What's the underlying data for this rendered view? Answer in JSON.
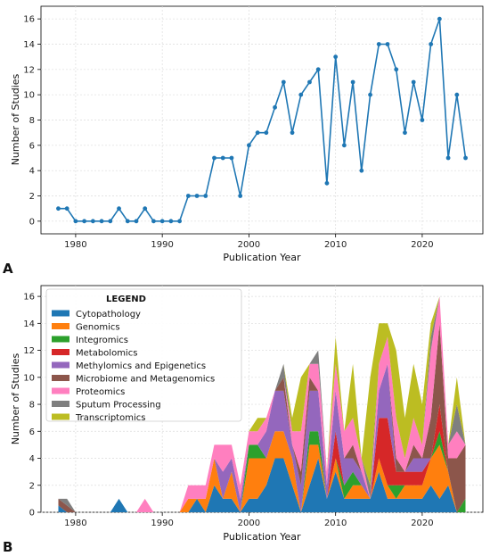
{
  "chart_data": [
    {
      "type": "line",
      "panel_label": "A",
      "xlabel": "Publication Year",
      "ylabel": "Number of Studies",
      "xlim": [
        1976,
        2027
      ],
      "ylim": [
        -1,
        17
      ],
      "xticks": [
        "1980",
        "1990",
        "2000",
        "2010",
        "2020"
      ],
      "yticks": [
        "0",
        "2",
        "4",
        "6",
        "8",
        "10",
        "12",
        "14",
        "16"
      ],
      "grid": true,
      "color": "#1f77b4",
      "x": [
        1978,
        1979,
        1980,
        1981,
        1982,
        1983,
        1984,
        1985,
        1986,
        1987,
        1988,
        1989,
        1990,
        1991,
        1992,
        1993,
        1994,
        1995,
        1996,
        1997,
        1998,
        1999,
        2000,
        2001,
        2002,
        2003,
        2004,
        2005,
        2006,
        2007,
        2008,
        2009,
        2010,
        2011,
        2012,
        2013,
        2014,
        2015,
        2016,
        2017,
        2018,
        2019,
        2020,
        2021,
        2022,
        2023,
        2024,
        2025
      ],
      "y": [
        1,
        1,
        0,
        0,
        0,
        0,
        0,
        1,
        0,
        0,
        1,
        0,
        0,
        0,
        0,
        2,
        2,
        2,
        5,
        5,
        5,
        2,
        6,
        7,
        7,
        9,
        11,
        7,
        10,
        11,
        12,
        3,
        13,
        6,
        11,
        4,
        10,
        14,
        14,
        12,
        7,
        11,
        8,
        14,
        16,
        5,
        10,
        5
      ]
    },
    {
      "type": "area",
      "stacked": true,
      "panel_label": "B",
      "xlabel": "Publication Year",
      "ylabel": "Number of Studies",
      "xlim": [
        1976,
        2027
      ],
      "ylim": [
        0,
        16.8
      ],
      "xticks": [
        "1980",
        "1990",
        "2000",
        "2010",
        "2020"
      ],
      "yticks": [
        "0",
        "2",
        "4",
        "6",
        "8",
        "10",
        "12",
        "14",
        "16"
      ],
      "grid": true,
      "legend_title": "LEGEND",
      "legend_position": "top-left",
      "x": [
        1978,
        1979,
        1980,
        1981,
        1982,
        1983,
        1984,
        1985,
        1986,
        1987,
        1988,
        1989,
        1990,
        1991,
        1992,
        1993,
        1994,
        1995,
        1996,
        1997,
        1998,
        1999,
        2000,
        2001,
        2002,
        2003,
        2004,
        2005,
        2006,
        2007,
        2008,
        2009,
        2010,
        2011,
        2012,
        2013,
        2014,
        2015,
        2016,
        2017,
        2018,
        2019,
        2020,
        2021,
        2022,
        2023,
        2024,
        2025
      ],
      "series": [
        {
          "name": "Cytopathology",
          "color": "#1f77b4",
          "values": [
            0.5,
            0,
            0,
            0,
            0,
            0,
            0,
            1,
            0,
            0,
            0,
            0,
            0,
            0,
            0,
            0,
            1,
            0,
            2,
            1,
            1,
            0,
            1,
            1,
            2,
            4,
            4,
            2,
            0,
            2,
            4,
            1,
            3,
            1,
            1,
            1,
            1,
            3,
            1,
            1,
            1,
            1,
            1,
            2,
            1,
            2,
            0,
            0
          ]
        },
        {
          "name": "Genomics",
          "color": "#ff7f0e",
          "values": [
            0,
            0,
            0,
            0,
            0,
            0,
            0,
            0,
            0,
            0,
            0,
            0,
            0,
            0,
            0,
            1,
            0,
            1,
            2,
            0,
            2,
            0,
            3,
            3,
            2,
            2,
            2,
            2,
            0,
            3,
            1,
            0,
            1,
            0,
            1,
            1,
            0,
            1,
            1,
            0,
            1,
            1,
            1,
            2,
            4,
            1,
            0,
            0
          ]
        },
        {
          "name": "Integromics",
          "color": "#2ca02c",
          "values": [
            0,
            0,
            0,
            0,
            0,
            0,
            0,
            0,
            0,
            0,
            0,
            0,
            0,
            0,
            0,
            0,
            0,
            0,
            0,
            0,
            0,
            0,
            1,
            1,
            0,
            0,
            0,
            0,
            0,
            1,
            1,
            0,
            0,
            1,
            1,
            0,
            0,
            0,
            0,
            1,
            0,
            0,
            0,
            0,
            1,
            0,
            0,
            1
          ]
        },
        {
          "name": "Metabolomics",
          "color": "#d62728",
          "values": [
            0,
            0,
            0,
            0,
            0,
            0,
            0,
            0,
            0,
            0,
            0,
            0,
            0,
            0,
            0,
            0,
            0,
            0,
            0,
            0,
            0,
            0,
            0,
            0,
            0,
            0,
            0,
            0,
            0,
            0,
            0,
            0,
            2,
            0,
            0,
            0,
            0,
            3,
            5,
            1,
            1,
            1,
            1,
            0,
            2,
            0,
            0,
            0
          ]
        },
        {
          "name": "Methylomics and Epigenetics",
          "color": "#9467bd",
          "values": [
            0,
            0,
            0,
            0,
            0,
            0,
            0,
            0,
            0,
            0,
            0,
            0,
            0,
            0,
            0,
            0,
            0,
            0,
            0,
            2,
            1,
            1,
            0,
            0,
            2,
            3,
            3,
            1,
            2,
            3,
            3,
            1,
            3,
            2,
            1,
            1,
            0,
            2,
            4,
            0,
            0,
            1,
            1,
            0,
            0,
            0,
            0,
            0
          ]
        },
        {
          "name": "Microbiome and Metagenomics",
          "color": "#8c564b",
          "values": [
            0.5,
            0.5,
            0,
            0,
            0,
            0,
            0,
            0,
            0,
            0,
            0,
            0,
            0,
            0,
            0,
            0,
            0,
            0,
            0,
            0,
            0,
            0,
            0,
            0,
            0,
            0,
            1,
            0,
            1,
            1,
            0,
            0,
            0,
            0,
            1,
            0,
            0,
            0,
            0,
            1,
            0,
            1,
            0,
            3,
            6,
            1,
            4,
            4
          ]
        },
        {
          "name": "Proteomics",
          "color": "#ff7fbf",
          "values": [
            0,
            0,
            0,
            0,
            0,
            0,
            0,
            0,
            0,
            0,
            1,
            0,
            0,
            0,
            0,
            1,
            1,
            1,
            1,
            2,
            1,
            1,
            1,
            1,
            1,
            0,
            0,
            1,
            3,
            1,
            2,
            1,
            2,
            2,
            2,
            1,
            0,
            2,
            2,
            3,
            1,
            2,
            1,
            5,
            2,
            1,
            2,
            0
          ]
        },
        {
          "name": "Sputum Processing",
          "color": "#7f7f7f",
          "values": [
            0,
            0.5,
            0,
            0,
            0,
            0,
            0,
            0,
            0,
            0,
            0,
            0,
            0,
            0,
            0,
            0,
            0,
            0,
            0,
            0,
            0,
            0,
            0,
            0,
            0,
            0,
            1,
            0,
            0,
            0,
            1,
            0,
            0,
            0,
            0,
            0,
            1,
            0,
            0,
            0,
            0,
            0,
            0,
            1,
            0,
            0,
            2,
            0
          ]
        },
        {
          "name": "Transcriptomics",
          "color": "#bcbd22",
          "values": [
            0,
            0,
            0,
            0,
            0,
            0,
            0,
            0,
            0,
            0,
            0,
            0,
            0,
            0,
            0,
            0,
            0,
            0,
            0,
            0,
            0,
            0,
            0,
            1,
            0,
            0,
            0,
            1,
            4,
            0,
            0,
            0,
            2,
            0,
            4,
            0,
            8,
            3,
            1,
            5,
            3,
            4,
            3,
            1,
            0,
            0,
            2,
            0
          ]
        }
      ]
    }
  ]
}
